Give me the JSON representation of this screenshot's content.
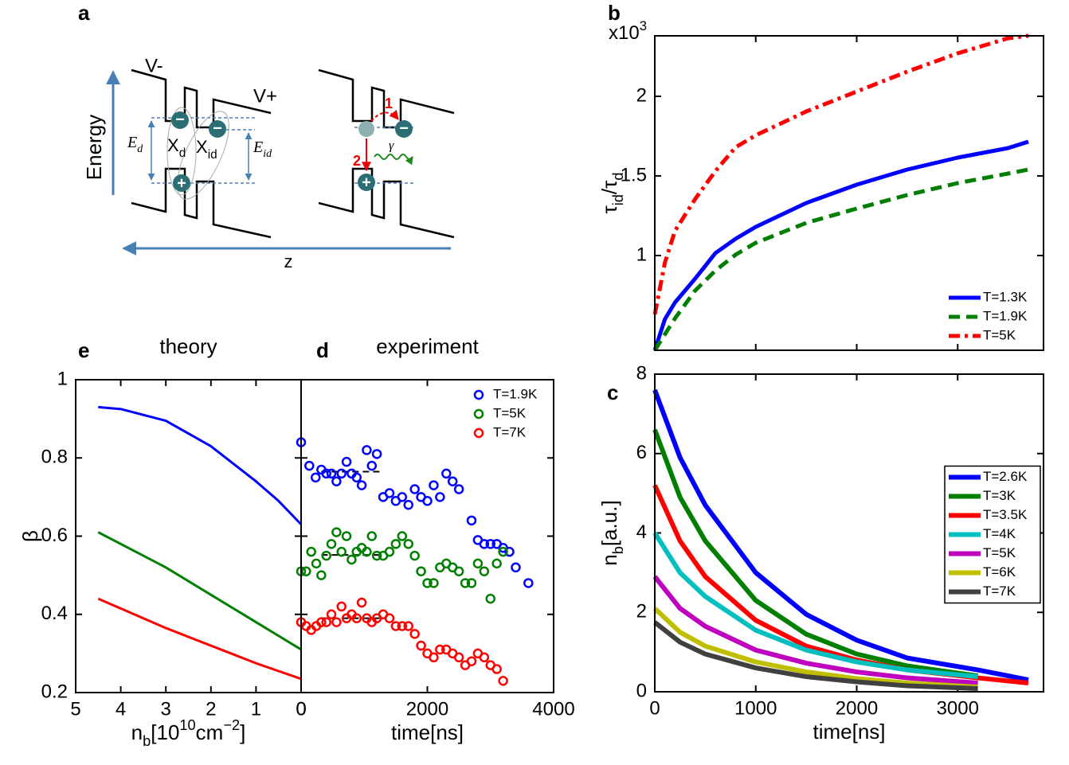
{
  "diagram": {
    "panel_label": "a",
    "v_minus": "V-",
    "v_plus": "V+",
    "energy": "Energy",
    "e_d": [
      {
        "text": "E"
      },
      {
        "sub": "d"
      }
    ],
    "e_id": [
      {
        "text": "E"
      },
      {
        "sub": "id"
      }
    ],
    "x_d": [
      {
        "text": "X"
      },
      {
        "sub": "d"
      }
    ],
    "x_id": [
      {
        "text": "X"
      },
      {
        "sub": "id"
      }
    ],
    "minus": "−",
    "plus": "+",
    "step_1": "1",
    "step_2": "2",
    "gamma": "γ",
    "z": "z"
  },
  "chart_data": [
    {
      "type": "line",
      "panel_label": "b",
      "x": [
        0,
        100,
        200,
        400,
        600,
        800,
        1000,
        1500,
        2000,
        2500,
        3000,
        3500,
        3700
      ],
      "xlim": [
        0,
        3850
      ],
      "xticks": [
        0,
        1000,
        2000,
        3000
      ],
      "xtick_labels": false,
      "ylim": [
        0.405,
        2.38
      ],
      "yticks": [
        1,
        1.5,
        2
      ],
      "y_multiplier": [
        {
          "text": "x10"
        },
        {
          "sup": "3"
        }
      ],
      "ylabel": [
        {
          "text": "τ"
        },
        {
          "sub": "id"
        },
        {
          "text": "/τ"
        },
        {
          "sub": "d"
        }
      ],
      "legend": "lower right",
      "legend_frame": false,
      "series": [
        {
          "name": "T=1.3K",
          "color": "#0000ff",
          "dash": "solid",
          "values": [
            0.405,
            0.6,
            0.705,
            0.855,
            1.015,
            1.105,
            1.18,
            1.33,
            1.445,
            1.54,
            1.615,
            1.675,
            1.715
          ]
        },
        {
          "name": "T=1.9K",
          "color": "#007f00",
          "dash": "dashed",
          "values": [
            0.405,
            0.505,
            0.605,
            0.78,
            0.905,
            1.005,
            1.08,
            1.205,
            1.295,
            1.38,
            1.455,
            1.515,
            1.54
          ]
        },
        {
          "name": "T=5K",
          "color": "#ff0000",
          "dash": "dashdot",
          "values": [
            0.63,
            0.955,
            1.155,
            1.355,
            1.53,
            1.68,
            1.755,
            1.905,
            2.03,
            2.155,
            2.27,
            2.365,
            2.38
          ]
        }
      ]
    },
    {
      "type": "line",
      "panel_label": "c",
      "x": [
        0,
        250,
        500,
        1000,
        1500,
        2000,
        2500,
        3200,
        3700
      ],
      "xlim": [
        0,
        3850
      ],
      "xticks": [
        0,
        1000,
        2000,
        3000
      ],
      "ylim": [
        0,
        8
      ],
      "yticks": [
        0,
        2,
        4,
        6,
        8
      ],
      "xlabel": "time[ns]",
      "ylabel": [
        {
          "text": "n"
        },
        {
          "sub": "b"
        },
        {
          "text": "[a.u.]"
        }
      ],
      "legend": "center right",
      "legend_frame": true,
      "series": [
        {
          "name": "T=2.6K",
          "color": "#0000ff",
          "values": [
            7.6,
            5.9,
            4.7,
            3.0,
            1.95,
            1.3,
            0.85,
            0.55,
            0.3
          ]
        },
        {
          "name": "T=3K",
          "color": "#007f00",
          "values": [
            6.6,
            4.9,
            3.8,
            2.3,
            1.45,
            0.95,
            0.65,
            0.4,
            null
          ]
        },
        {
          "name": "T=3.5K",
          "color": "#ff0000",
          "values": [
            5.2,
            3.8,
            2.9,
            1.8,
            1.15,
            0.8,
            0.55,
            0.35,
            0.22
          ]
        },
        {
          "name": "T=4K",
          "color": "#00bfbf",
          "values": [
            4.0,
            3.0,
            2.4,
            1.55,
            1.05,
            0.75,
            0.55,
            0.38,
            null
          ]
        },
        {
          "name": "T=5K",
          "color": "#bf00bf",
          "values": [
            2.9,
            2.1,
            1.65,
            1.05,
            0.72,
            0.5,
            0.35,
            0.22,
            null
          ]
        },
        {
          "name": "T=6K",
          "color": "#bfbf00",
          "values": [
            2.1,
            1.5,
            1.15,
            0.75,
            0.5,
            0.33,
            0.22,
            0.12,
            null
          ]
        },
        {
          "name": "T=7K",
          "color": "#404040",
          "values": [
            1.75,
            1.25,
            0.95,
            0.6,
            0.38,
            0.25,
            0.15,
            0.08,
            null
          ]
        }
      ]
    },
    {
      "type": "scatter",
      "panel_label": "d",
      "title": "experiment",
      "xlim": [
        0,
        4000
      ],
      "xticks": [
        0,
        2000,
        4000
      ],
      "ylim": [
        0.2,
        1
      ],
      "yticks": [
        0.2,
        0.4,
        0.6,
        0.8,
        1
      ],
      "ytick_labels": false,
      "xlabel": "time[ns]",
      "legend": "upper right",
      "legend_frame": false,
      "series": [
        {
          "name": "T=1.9K",
          "color": "#0000ff",
          "x": [
            0,
            130,
            230,
            320,
            400,
            480,
            560,
            640,
            720,
            800,
            880,
            960,
            1040,
            1120,
            1200,
            1300,
            1400,
            1500,
            1600,
            1700,
            1800,
            1900,
            2000,
            2100,
            2200,
            2300,
            2400,
            2500,
            2700,
            2800,
            2900,
            3000,
            3100,
            3200,
            3300,
            3400,
            3600
          ],
          "values": [
            0.84,
            0.78,
            0.75,
            0.77,
            0.76,
            0.76,
            0.74,
            0.76,
            0.79,
            0.76,
            0.75,
            0.73,
            0.82,
            0.78,
            0.81,
            0.7,
            0.71,
            0.69,
            0.7,
            0.68,
            0.72,
            0.7,
            0.69,
            0.73,
            0.7,
            0.76,
            0.74,
            0.72,
            0.64,
            0.59,
            0.58,
            0.58,
            0.58,
            0.57,
            0.56,
            0.52,
            0.48
          ]
        },
        {
          "name": "T=5K",
          "color": "#007f00",
          "x": [
            0,
            80,
            160,
            240,
            320,
            400,
            480,
            560,
            640,
            720,
            800,
            880,
            960,
            1040,
            1120,
            1200,
            1300,
            1400,
            1500,
            1600,
            1700,
            1800,
            1900,
            2000,
            2100,
            2200,
            2300,
            2400,
            2500,
            2600,
            2700,
            2800,
            2900,
            3000,
            3100,
            3200
          ],
          "values": [
            0.51,
            0.51,
            0.56,
            0.53,
            0.5,
            0.55,
            0.58,
            0.61,
            0.56,
            0.6,
            0.54,
            0.56,
            0.57,
            0.56,
            0.6,
            0.55,
            0.55,
            0.56,
            0.58,
            0.6,
            0.58,
            0.55,
            0.51,
            0.48,
            0.48,
            0.52,
            0.53,
            0.52,
            0.51,
            0.48,
            0.48,
            0.53,
            0.51,
            0.44,
            0.53,
            0.56
          ]
        },
        {
          "name": "T=7K",
          "color": "#ff0000",
          "x": [
            0,
            80,
            160,
            240,
            320,
            400,
            480,
            560,
            640,
            720,
            800,
            880,
            960,
            1040,
            1120,
            1200,
            1300,
            1400,
            1500,
            1600,
            1700,
            1800,
            1900,
            2000,
            2100,
            2200,
            2300,
            2400,
            2500,
            2600,
            2700,
            2800,
            2900,
            3000,
            3100,
            3200
          ],
          "values": [
            0.38,
            0.37,
            0.36,
            0.37,
            0.38,
            0.38,
            0.4,
            0.38,
            0.42,
            0.39,
            0.4,
            0.39,
            0.43,
            0.39,
            0.38,
            0.39,
            0.4,
            0.39,
            0.37,
            0.37,
            0.37,
            0.35,
            0.32,
            0.3,
            0.29,
            0.31,
            0.31,
            0.3,
            0.29,
            0.27,
            0.28,
            0.3,
            0.29,
            0.27,
            0.26,
            0.23
          ]
        }
      ],
      "hlines": [
        {
          "y": 0.765,
          "xmin": 320,
          "xmax": 1300
        },
        {
          "y": 0.552,
          "xmin": 320,
          "xmax": 1300
        },
        {
          "y": 0.39,
          "xmin": 320,
          "xmax": 1300
        }
      ]
    },
    {
      "type": "line",
      "panel_label": "e",
      "title": "theory",
      "x": [
        4.5,
        4,
        3,
        2,
        1,
        0.5,
        0
      ],
      "xlim": [
        5,
        0
      ],
      "xticks": [
        5,
        4,
        3,
        2,
        1,
        0
      ],
      "ylim": [
        0.2,
        1
      ],
      "yticks": [
        0.2,
        0.4,
        0.6,
        0.8,
        1
      ],
      "xlabel": [
        {
          "text": "n"
        },
        {
          "sub": "b"
        },
        {
          "text": "[10"
        },
        {
          "sup": "10"
        },
        {
          "text": "cm"
        },
        {
          "sup": "−2"
        },
        {
          "text": "]"
        }
      ],
      "ylabel": "β",
      "series": [
        {
          "color": "#0000ff",
          "values": [
            0.93,
            0.925,
            0.895,
            0.83,
            0.74,
            0.69,
            0.63
          ]
        },
        {
          "color": "#007f00",
          "values": [
            0.61,
            0.58,
            0.52,
            0.45,
            0.38,
            0.345,
            0.31
          ]
        },
        {
          "color": "#ff0000",
          "values": [
            0.44,
            0.415,
            0.365,
            0.32,
            0.275,
            0.255,
            0.235
          ]
        }
      ]
    }
  ]
}
